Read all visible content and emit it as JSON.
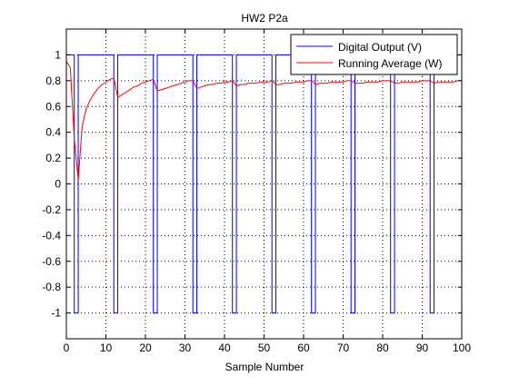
{
  "chart_data": {
    "type": "line",
    "title": "HW2 P2a",
    "xlabel": "Sample Number",
    "ylabel": "",
    "xlim": [
      0,
      100
    ],
    "ylim": [
      -1.2,
      1.2
    ],
    "xticks": [
      0,
      10,
      20,
      30,
      40,
      50,
      60,
      70,
      80,
      90,
      100
    ],
    "yticks": [
      -1,
      -0.8,
      -0.6,
      -0.4,
      -0.2,
      0,
      0.2,
      0.4,
      0.6,
      0.8,
      1
    ],
    "xtick_labels": [
      "0",
      "10",
      "20",
      "30",
      "40",
      "50",
      "60",
      "70",
      "80",
      "90",
      "100"
    ],
    "ytick_labels": [
      "-1",
      "-0.8",
      "-0.6",
      "-0.4",
      "-0.2",
      "0",
      "0.2",
      "0.4",
      "0.6",
      "0.8",
      "1"
    ],
    "grid": true,
    "legend_position": "top-right",
    "series": [
      {
        "name": "Digital Output (V)",
        "color": "#0000ff",
        "style": "step",
        "x": [
          0,
          2,
          2,
          3,
          3,
          12,
          12,
          13,
          13,
          22,
          22,
          23,
          23,
          32,
          32,
          33,
          33,
          42,
          42,
          43,
          43,
          52,
          52,
          53,
          53,
          62,
          62,
          63,
          63,
          72,
          72,
          73,
          73,
          82,
          82,
          83,
          83,
          92,
          92,
          93,
          93,
          100
        ],
        "values": [
          1,
          1,
          -1,
          -1,
          1,
          1,
          -1,
          -1,
          1,
          1,
          -1,
          -1,
          1,
          1,
          -1,
          -1,
          1,
          1,
          -1,
          -1,
          1,
          1,
          -1,
          -1,
          1,
          1,
          -1,
          -1,
          1,
          1,
          -1,
          -1,
          1,
          1,
          -1,
          -1,
          1,
          1,
          -1,
          -1,
          1,
          1
        ]
      },
      {
        "name": "Running Average (W)",
        "color": "#ff0000",
        "style": "line",
        "x": [
          0,
          1,
          2,
          3,
          4,
          5,
          6,
          7,
          8,
          9,
          10,
          11,
          12,
          13,
          14,
          15,
          16,
          17,
          18,
          19,
          20,
          21,
          22,
          23,
          24,
          25,
          26,
          27,
          28,
          29,
          30,
          31,
          32,
          33,
          34,
          35,
          36,
          37,
          38,
          39,
          40,
          41,
          42,
          43,
          44,
          45,
          46,
          47,
          48,
          49,
          50,
          51,
          52,
          53,
          54,
          55,
          56,
          57,
          58,
          59,
          60,
          61,
          62,
          63,
          64,
          65,
          66,
          67,
          68,
          69,
          70,
          71,
          72,
          73,
          74,
          75,
          76,
          77,
          78,
          79,
          80,
          81,
          82,
          83,
          84,
          85,
          86,
          87,
          88,
          89,
          90,
          91,
          92,
          93,
          94,
          95,
          96,
          97,
          98,
          99,
          100
        ],
        "values": [
          0.95,
          0.9,
          0.35,
          0.03,
          0.45,
          0.58,
          0.65,
          0.7,
          0.74,
          0.77,
          0.79,
          0.81,
          0.82,
          0.67,
          0.69,
          0.71,
          0.73,
          0.75,
          0.76,
          0.78,
          0.79,
          0.8,
          0.81,
          0.72,
          0.73,
          0.74,
          0.75,
          0.76,
          0.77,
          0.78,
          0.79,
          0.8,
          0.8,
          0.74,
          0.75,
          0.76,
          0.77,
          0.77,
          0.78,
          0.78,
          0.79,
          0.79,
          0.8,
          0.76,
          0.77,
          0.77,
          0.78,
          0.78,
          0.78,
          0.79,
          0.79,
          0.79,
          0.8,
          0.77,
          0.77,
          0.78,
          0.78,
          0.78,
          0.79,
          0.79,
          0.79,
          0.8,
          0.8,
          0.77,
          0.78,
          0.78,
          0.78,
          0.79,
          0.79,
          0.79,
          0.79,
          0.8,
          0.8,
          0.78,
          0.78,
          0.78,
          0.79,
          0.79,
          0.79,
          0.79,
          0.8,
          0.8,
          0.8,
          0.78,
          0.78,
          0.79,
          0.79,
          0.79,
          0.79,
          0.79,
          0.8,
          0.8,
          0.8,
          0.78,
          0.79,
          0.79,
          0.79,
          0.79,
          0.79,
          0.8,
          0.8
        ]
      }
    ]
  }
}
